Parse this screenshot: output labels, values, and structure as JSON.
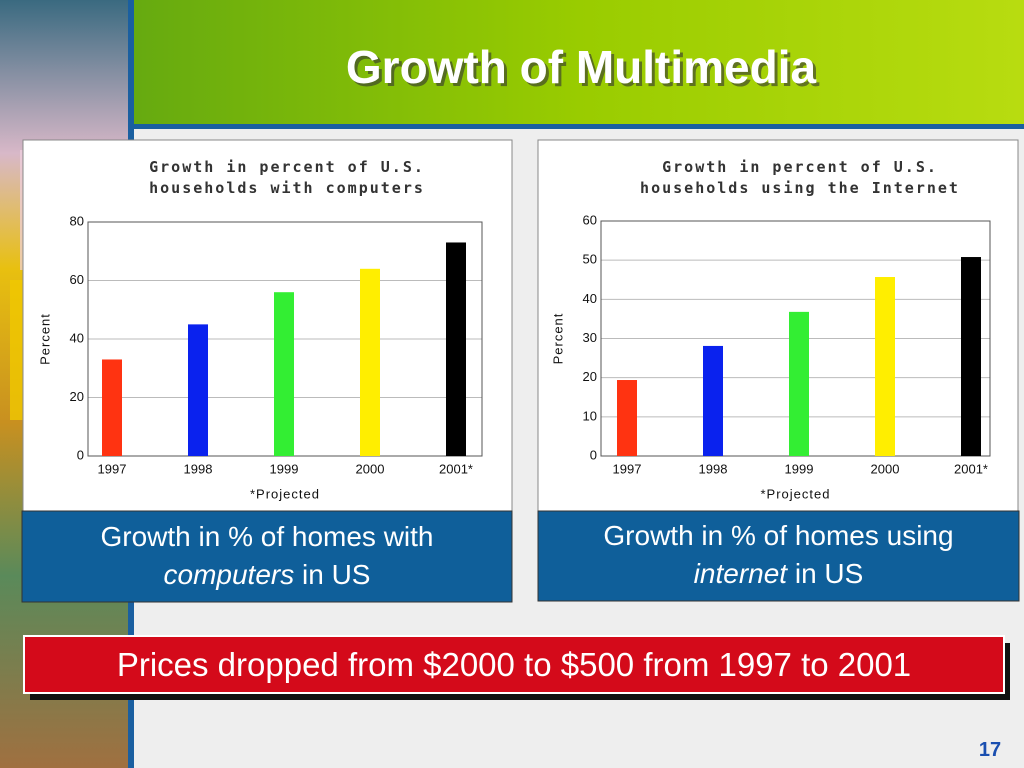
{
  "slide": {
    "title": "Growth of Multimedia",
    "page_number": "17",
    "banner": "Prices dropped from $2000 to $500 from 1997 to 2001",
    "captions": [
      {
        "text": "Growth in % of homes with",
        "emphasis": "computers",
        "rest": "in US"
      },
      {
        "text": "Growth in % of homes using",
        "emphasis": "internet",
        "rest": "in US"
      }
    ]
  },
  "chart_data": [
    {
      "type": "bar",
      "title": [
        "Growth in percent of U.S.",
        "households with computers"
      ],
      "x_label": "*Projected",
      "y_label": "Percent",
      "categories": [
        "1997",
        "1998",
        "1999",
        "2000",
        "2001*"
      ],
      "values": [
        33,
        45,
        56,
        64,
        73
      ],
      "colors": [
        "#ff3311",
        "#0a22ee",
        "#33ee33",
        "#ffee00",
        "#000000"
      ],
      "ylim": [
        0,
        80
      ],
      "yticks": [
        0,
        20,
        40,
        60,
        80
      ],
      "grid": true
    },
    {
      "type": "bar",
      "title": [
        "Growth in percent of U.S.",
        "households using the Internet"
      ],
      "x_label": "*Projected",
      "y_label": "Percent",
      "categories": [
        "1997",
        "1998",
        "1999",
        "2000",
        "2001*"
      ],
      "values": [
        19.4,
        28.1,
        36.8,
        45.7,
        50.8
      ],
      "colors": [
        "#ff3311",
        "#0a22ee",
        "#33ee33",
        "#ffee00",
        "#000000"
      ],
      "ylim": [
        0,
        60
      ],
      "yticks": [
        0,
        10,
        20,
        30,
        40,
        50,
        60
      ],
      "grid": true
    }
  ]
}
